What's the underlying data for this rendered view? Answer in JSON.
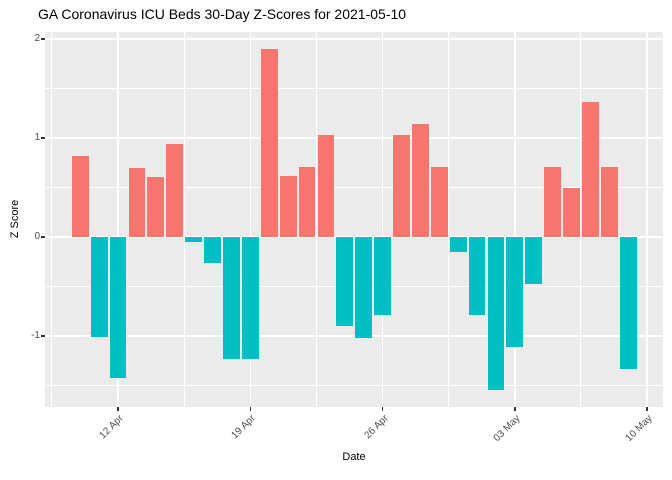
{
  "chart_data": {
    "type": "bar",
    "title": "GA Coronavirus ICU Beds 30-Day Z-Scores for 2021-05-10",
    "xlabel": "Date",
    "ylabel": "Z Score",
    "x": [
      "2021-04-10",
      "2021-04-11",
      "2021-04-12",
      "2021-04-13",
      "2021-04-14",
      "2021-04-15",
      "2021-04-16",
      "2021-04-17",
      "2021-04-18",
      "2021-04-19",
      "2021-04-20",
      "2021-04-21",
      "2021-04-22",
      "2021-04-23",
      "2021-04-24",
      "2021-04-25",
      "2021-04-26",
      "2021-04-27",
      "2021-04-28",
      "2021-04-29",
      "2021-04-30",
      "2021-05-01",
      "2021-05-02",
      "2021-05-03",
      "2021-05-04",
      "2021-05-05",
      "2021-05-06",
      "2021-05-07",
      "2021-05-08",
      "2021-05-09"
    ],
    "values": [
      0.82,
      -1.01,
      -1.43,
      0.7,
      0.6,
      0.94,
      -0.05,
      -0.26,
      -1.23,
      -1.23,
      1.9,
      0.61,
      0.71,
      1.03,
      -0.9,
      -1.02,
      -0.79,
      1.03,
      1.14,
      0.71,
      -0.15,
      -0.79,
      -1.55,
      -1.11,
      -0.48,
      0.71,
      0.49,
      1.36,
      0.71,
      -1.34
    ],
    "x_tick_labels": [
      "12 Apr",
      "19 Apr",
      "26 Apr",
      "03 May",
      "10 May"
    ],
    "x_tick_day_index": [
      2,
      9,
      16,
      23,
      30
    ],
    "x_minor_day_index": [
      -1.5,
      5.5,
      12.5,
      19.5,
      26.5
    ],
    "y_ticks": [
      "2",
      "1",
      "0",
      "-1"
    ],
    "y_tick_values": [
      2,
      1,
      0,
      -1
    ],
    "y_minor_values": [
      1.5,
      0.5,
      -0.5,
      -1.5
    ],
    "ylim": [
      -1.72,
      2.07
    ],
    "grid": "on",
    "legend": "none",
    "colors": {
      "positive": "#F8766D",
      "negative": "#00BFC4",
      "panel_bg": "#EBEBEB",
      "gridline": "#FFFFFF",
      "tick_text": "#4D4D4D",
      "axis_title_text": "#000000",
      "title_text": "#000000",
      "tick_mark": "#333333",
      "background": "#FFFFFF"
    }
  }
}
